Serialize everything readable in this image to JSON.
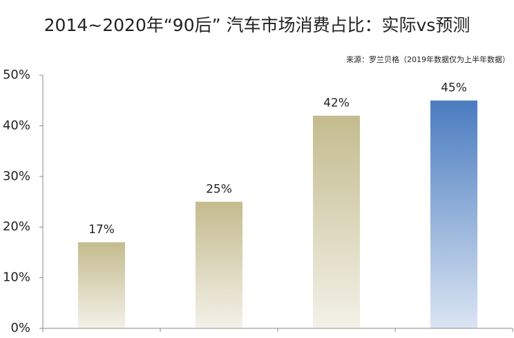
{
  "chart_data": {
    "type": "bar",
    "title": "2014~2020年“90后” 汽车市场消费占比：实际vs预测",
    "source": "来源：罗兰贝格（2019年数据仅为上半年数据）",
    "categories": [
      null,
      null,
      null,
      null
    ],
    "values": [
      17,
      25,
      42,
      45
    ],
    "value_labels": [
      "17%",
      "25%",
      "42%",
      "45%"
    ],
    "colors": [
      "#c4bb8e",
      "#c4bb8e",
      "#c4bb8e",
      "#4a7cc0"
    ],
    "ylim": [
      0,
      50
    ],
    "yticks": [
      {
        "value": 0,
        "label": "0%"
      },
      {
        "value": 10,
        "label": "10%"
      },
      {
        "value": 20,
        "label": "20%"
      },
      {
        "value": 30,
        "label": "30%"
      },
      {
        "value": 40,
        "label": "40%"
      },
      {
        "value": 50,
        "label": "50%"
      }
    ],
    "grid": false
  }
}
